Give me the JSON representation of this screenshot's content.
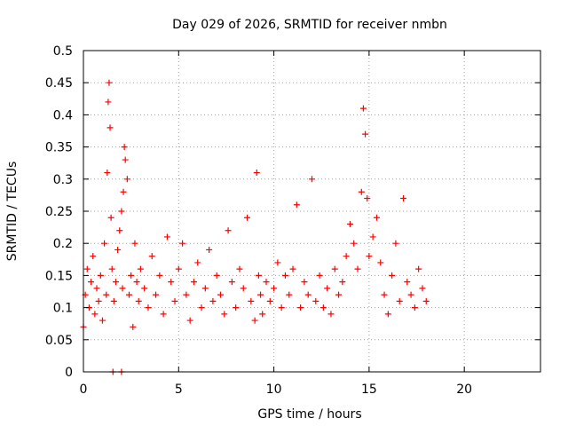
{
  "chart_data": {
    "type": "scatter",
    "title": "Day 029 of 2026, SRMTID for receiver nmbn",
    "xlabel": "GPS time / hours",
    "ylabel": "SRMTID / TECUs",
    "xlim": [
      0,
      24
    ],
    "ylim": [
      0,
      0.5
    ],
    "x_ticks": [
      0,
      5,
      10,
      15,
      20
    ],
    "x_tick_labels": [
      "0",
      "5",
      "10",
      "15",
      "20"
    ],
    "y_ticks": [
      0,
      0.05,
      0.1,
      0.15,
      0.2,
      0.25,
      0.3,
      0.35,
      0.4,
      0.45,
      0.5
    ],
    "y_tick_labels": [
      "0",
      "0.05",
      "0.1",
      "0.15",
      "0.2",
      "0.25",
      "0.3",
      "0.35",
      "0.4",
      "0.45",
      "0.5"
    ],
    "grid": true,
    "marker": "+",
    "colors": {
      "points": "#ff0000",
      "grid": "#a0a0a0",
      "axes": "#000000"
    },
    "series": [
      {
        "name": "SRMTID",
        "x": [
          0.0,
          0.1,
          0.2,
          0.3,
          0.4,
          0.5,
          0.6,
          0.7,
          0.8,
          0.9,
          1.0,
          1.1,
          1.2,
          1.25,
          1.3,
          1.35,
          1.4,
          1.45,
          1.5,
          1.6,
          1.7,
          1.8,
          1.9,
          2.0,
          2.05,
          2.1,
          2.15,
          2.2,
          2.3,
          2.4,
          2.5,
          2.6,
          2.7,
          2.8,
          2.9,
          3.0,
          3.2,
          3.4,
          3.6,
          3.8,
          4.0,
          4.2,
          4.4,
          4.6,
          4.8,
          5.0,
          5.2,
          5.4,
          5.6,
          5.8,
          6.0,
          6.2,
          6.4,
          6.6,
          6.8,
          7.0,
          7.2,
          7.4,
          7.6,
          7.8,
          8.0,
          8.2,
          8.4,
          8.6,
          8.8,
          9.0,
          9.1,
          9.2,
          9.3,
          9.4,
          9.6,
          9.8,
          10.0,
          10.2,
          10.4,
          10.6,
          10.8,
          11.0,
          11.2,
          11.4,
          11.6,
          11.8,
          12.0,
          12.2,
          12.4,
          12.6,
          12.8,
          13.0,
          13.2,
          13.4,
          13.6,
          13.8,
          14.0,
          14.2,
          14.4,
          14.6,
          14.7,
          14.8,
          14.9,
          15.0,
          15.2,
          15.4,
          15.6,
          15.8,
          16.0,
          16.2,
          16.4,
          16.6,
          16.8,
          17.0,
          17.2,
          17.4,
          17.6,
          17.8,
          18.0,
          1.55,
          2.0
        ],
        "y": [
          0.07,
          0.12,
          0.16,
          0.1,
          0.14,
          0.18,
          0.09,
          0.13,
          0.11,
          0.15,
          0.08,
          0.2,
          0.12,
          0.31,
          0.42,
          0.45,
          0.38,
          0.24,
          0.16,
          0.11,
          0.14,
          0.19,
          0.22,
          0.25,
          0.13,
          0.28,
          0.35,
          0.33,
          0.3,
          0.12,
          0.15,
          0.07,
          0.2,
          0.14,
          0.11,
          0.16,
          0.13,
          0.1,
          0.18,
          0.12,
          0.15,
          0.09,
          0.21,
          0.14,
          0.11,
          0.16,
          0.2,
          0.12,
          0.08,
          0.14,
          0.17,
          0.1,
          0.13,
          0.19,
          0.11,
          0.15,
          0.12,
          0.09,
          0.22,
          0.14,
          0.1,
          0.16,
          0.13,
          0.24,
          0.11,
          0.08,
          0.31,
          0.15,
          0.12,
          0.09,
          0.14,
          0.11,
          0.13,
          0.17,
          0.1,
          0.15,
          0.12,
          0.16,
          0.26,
          0.1,
          0.14,
          0.12,
          0.3,
          0.11,
          0.15,
          0.1,
          0.13,
          0.09,
          0.16,
          0.12,
          0.14,
          0.18,
          0.23,
          0.2,
          0.16,
          0.28,
          0.41,
          0.37,
          0.27,
          0.18,
          0.21,
          0.24,
          0.17,
          0.12,
          0.09,
          0.15,
          0.2,
          0.11,
          0.27,
          0.14,
          0.12,
          0.1,
          0.16,
          0.13,
          0.11,
          0.0,
          0.0
        ]
      }
    ]
  }
}
